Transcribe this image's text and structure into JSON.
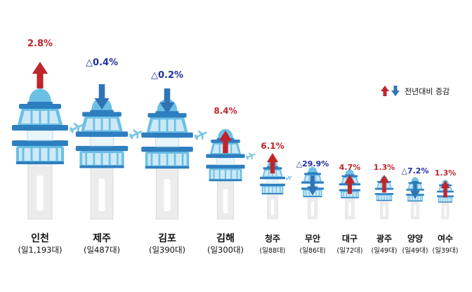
{
  "chart_data": {
    "type": "pictograph",
    "title": "",
    "legend": {
      "label": "전년대비 증감",
      "position": "top-right"
    },
    "colors": {
      "up": "#c0252c",
      "down": "#2f74b5",
      "up_text": "#c0252c",
      "down_text": "#1f2fa0"
    },
    "airports": [
      {
        "name": "인천",
        "daily": "(일1,193대)",
        "change": 2.8,
        "change_label": "2.8%",
        "direction": "up"
      },
      {
        "name": "제주",
        "daily": "(일487대)",
        "change": -0.4,
        "change_label": "△0.4%",
        "direction": "down"
      },
      {
        "name": "김포",
        "daily": "(일390대)",
        "change": -0.2,
        "change_label": "△0.2%",
        "direction": "down"
      },
      {
        "name": "김해",
        "daily": "(일300대)",
        "change": 8.4,
        "change_label": "8.4%",
        "direction": "up"
      },
      {
        "name": "청주",
        "daily": "(일88대)",
        "change": 6.1,
        "change_label": "6.1%",
        "direction": "up"
      },
      {
        "name": "무안",
        "daily": "(일86대)",
        "change": -29.9,
        "change_label": "△29.9%",
        "direction": "down"
      },
      {
        "name": "대구",
        "daily": "(일72대)",
        "change": 4.7,
        "change_label": "4.7%",
        "direction": "up"
      },
      {
        "name": "광주",
        "daily": "(일49대)",
        "change": 1.3,
        "change_label": "1.3%",
        "direction": "up"
      },
      {
        "name": "양양",
        "daily": "(일49대)",
        "change": -7.2,
        "change_label": "△7.2%",
        "direction": "down"
      },
      {
        "name": "여수",
        "daily": "(일39대)",
        "change": 1.3,
        "change_label": "1.3%",
        "direction": "up"
      }
    ]
  }
}
